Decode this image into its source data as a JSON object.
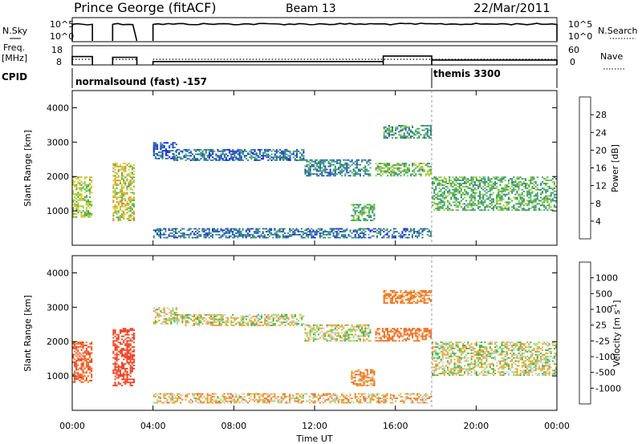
{
  "header": {
    "station": "Prince George (fitACF)",
    "beam": "Beam 13",
    "date": "22/Mar/2011"
  },
  "nsky_panel": {
    "left_label": "N.Sky",
    "right_label": "N.Search",
    "left_ticks": [
      "10^5",
      "10^0"
    ],
    "right_ticks": [
      "10^5",
      "10^0"
    ]
  },
  "freq_panel": {
    "left_label_line1": "Freq.",
    "left_label_line2": "[MHz]",
    "right_label": "Nave",
    "left_ticks": [
      "18",
      "8"
    ],
    "right_ticks": [
      "60",
      "0"
    ],
    "freq_steps": [
      {
        "from": 0.0,
        "to": 1.0,
        "freq": 13.5
      },
      {
        "from": 2.0,
        "to": 3.2,
        "freq": 13.0
      },
      {
        "from": 4.0,
        "to": 15.4,
        "freq": 10.2
      },
      {
        "from": 15.4,
        "to": 17.8,
        "freq": 13.8
      },
      {
        "from": 17.8,
        "to": 24.0,
        "freq": 11.2
      }
    ],
    "nave_steps": [
      {
        "from": 0.0,
        "to": 1.0,
        "nave": 22
      },
      {
        "from": 2.0,
        "to": 3.2,
        "nave": 22
      },
      {
        "from": 4.0,
        "to": 24.0,
        "nave": 22
      }
    ]
  },
  "cpid": {
    "label": "CPID",
    "modes": [
      {
        "start": 0.0,
        "end": 17.8,
        "text": "normalsound (fast) -157"
      },
      {
        "start": 17.8,
        "end": 24.0,
        "text": "themis 3300"
      }
    ]
  },
  "chart_data": [
    {
      "type": "heatmap",
      "quantity": "Power",
      "ylabel": "Slant Range [km]",
      "ylim": [
        0,
        4500
      ],
      "yticks": [
        1000,
        2000,
        3000,
        4000
      ],
      "xlim": [
        0,
        24
      ],
      "colorbar": {
        "label": "Power [dB]",
        "ticks": [
          "4",
          "8",
          "12",
          "16",
          "20",
          "24",
          "28"
        ],
        "colors": [
          "#1a1aff",
          "#1f4fb0",
          "#2c8a8a",
          "#44aa55",
          "#9acd32",
          "#f0c020",
          "#f08020",
          "#e02020"
        ]
      },
      "echo_regions": [
        {
          "t": [
            0.0,
            1.0
          ],
          "r": [
            800,
            2000
          ],
          "mean": 18
        },
        {
          "t": [
            2.0,
            3.1
          ],
          "r": [
            700,
            2400
          ],
          "mean": 20
        },
        {
          "t": [
            4.0,
            5.2
          ],
          "r": [
            2500,
            3000
          ],
          "mean": 6
        },
        {
          "t": [
            5.0,
            11.5
          ],
          "r": [
            2450,
            2800
          ],
          "mean": 8
        },
        {
          "t": [
            11.5,
            14.8
          ],
          "r": [
            2000,
            2500
          ],
          "mean": 10
        },
        {
          "t": [
            13.8,
            15.0
          ],
          "r": [
            700,
            1200
          ],
          "mean": 14
        },
        {
          "t": [
            15.0,
            17.8
          ],
          "r": [
            2000,
            2400
          ],
          "mean": 16
        },
        {
          "t": [
            15.4,
            17.8
          ],
          "r": [
            3100,
            3500
          ],
          "mean": 12
        },
        {
          "t": [
            17.8,
            24.0
          ],
          "r": [
            1000,
            2000
          ],
          "mean": 14
        },
        {
          "t": [
            4.0,
            17.8
          ],
          "r": [
            200,
            500
          ],
          "mean": 8
        }
      ]
    },
    {
      "type": "heatmap",
      "quantity": "Velocity",
      "ylabel": "Slant Range [km]",
      "ylim": [
        0,
        4500
      ],
      "yticks": [
        1000,
        2000,
        3000,
        4000
      ],
      "xlim": [
        0,
        24
      ],
      "xlabel": "Time UT",
      "xticks": [
        "00:00",
        "04:00",
        "08:00",
        "12:00",
        "16:00",
        "20:00",
        "00:00"
      ],
      "colorbar": {
        "label": "Velocity [m s^-1]",
        "ticks": [
          "1000",
          "500",
          "100",
          "25",
          "-25",
          "-100",
          "-500",
          "-1000"
        ],
        "colors": [
          "#1a3ad0",
          "#2a7a3a",
          "#3cb04a",
          "#8ce060",
          "#c8c8c8",
          "#f0a020",
          "#f07020",
          "#f04020",
          "#e01010"
        ]
      },
      "echo_regions": [
        {
          "t": [
            0.0,
            1.0
          ],
          "r": [
            800,
            2000
          ],
          "mean": -300
        },
        {
          "t": [
            2.0,
            3.1
          ],
          "r": [
            700,
            2400
          ],
          "mean": -400
        },
        {
          "t": [
            4.0,
            5.2
          ],
          "r": [
            2500,
            3000
          ],
          "mean": 0
        },
        {
          "t": [
            5.0,
            11.5
          ],
          "r": [
            2450,
            2800
          ],
          "mean": 0
        },
        {
          "t": [
            11.5,
            14.8
          ],
          "r": [
            2000,
            2500
          ],
          "mean": 0
        },
        {
          "t": [
            13.8,
            15.0
          ],
          "r": [
            700,
            1200
          ],
          "mean": -100
        },
        {
          "t": [
            15.0,
            17.8
          ],
          "r": [
            2000,
            2400
          ],
          "mean": -200
        },
        {
          "t": [
            15.4,
            17.8
          ],
          "r": [
            3100,
            3500
          ],
          "mean": -150
        },
        {
          "t": [
            17.8,
            24.0
          ],
          "r": [
            1000,
            2000
          ],
          "mean": 0
        },
        {
          "t": [
            4.0,
            17.8
          ],
          "r": [
            200,
            500
          ],
          "mean": -50
        }
      ]
    }
  ]
}
